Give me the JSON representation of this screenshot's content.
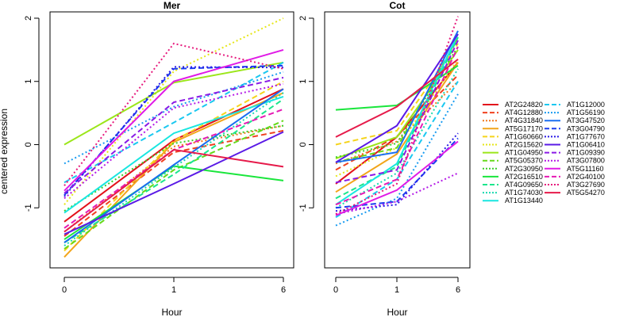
{
  "chart_data": {
    "type": "line",
    "ylabel": "centered expression",
    "xlabel": "Hour",
    "x": [
      "0",
      "1",
      "6"
    ],
    "y_ticks": [
      "-1",
      "0",
      "1",
      "2"
    ],
    "ylim": [
      -1.95,
      2.1
    ],
    "grid": false,
    "legend_position": "right",
    "series_styles": [
      {
        "name": "AT2G24820",
        "color": "#e3111b",
        "dash": "solid"
      },
      {
        "name": "AT4G12880",
        "color": "#f0421f",
        "dash": "dashed"
      },
      {
        "name": "AT4G31840",
        "color": "#f07a1f",
        "dash": "dotted"
      },
      {
        "name": "AT5G17170",
        "color": "#f2a51a",
        "dash": "solid"
      },
      {
        "name": "AT1G60660",
        "color": "#f5d41b",
        "dash": "dashed"
      },
      {
        "name": "AT2G15620",
        "color": "#e6e619",
        "dash": "dotted"
      },
      {
        "name": "AT1G04950",
        "color": "#9be61a",
        "dash": "solid"
      },
      {
        "name": "AT5G05370",
        "color": "#66d91a",
        "dash": "dashed"
      },
      {
        "name": "AT2G30950",
        "color": "#3ccf2a",
        "dash": "dotted"
      },
      {
        "name": "AT2G16510",
        "color": "#1ae63c",
        "dash": "solid"
      },
      {
        "name": "AT4G09650",
        "color": "#1ae68c",
        "dash": "dashed"
      },
      {
        "name": "AT1G74030",
        "color": "#1ad9b0",
        "dash": "dotted"
      },
      {
        "name": "AT1G13440",
        "color": "#19e6e0",
        "dash": "solid"
      },
      {
        "name": "AT1G12000",
        "color": "#1ac8f0",
        "dash": "dashed"
      },
      {
        "name": "AT1G56190",
        "color": "#1a9cf0",
        "dash": "dotted"
      },
      {
        "name": "AT3G47520",
        "color": "#1a6ef0",
        "dash": "solid"
      },
      {
        "name": "AT3G04790",
        "color": "#1a3cf0",
        "dash": "dashed"
      },
      {
        "name": "AT1G77670",
        "color": "#2a1ae6",
        "dash": "dotted"
      },
      {
        "name": "AT1G06410",
        "color": "#5a1ae6",
        "dash": "solid"
      },
      {
        "name": "AT1G09390",
        "color": "#8a1ae6",
        "dash": "dashed"
      },
      {
        "name": "AT3G07800",
        "color": "#b41ae6",
        "dash": "dotted"
      },
      {
        "name": "AT5G11160",
        "color": "#e01ae6",
        "dash": "solid"
      },
      {
        "name": "AT2G40100",
        "color": "#e61ab4",
        "dash": "dashed"
      },
      {
        "name": "AT3G27690",
        "color": "#e61a7d",
        "dash": "dotted"
      },
      {
        "name": "AT5G54270",
        "color": "#e61a4a",
        "dash": "solid"
      }
    ],
    "panels": [
      {
        "title": "Mer",
        "series": [
          {
            "name": "AT2G24820",
            "values": [
              -1.22,
              0.07,
              0.88
            ]
          },
          {
            "name": "AT4G12880",
            "values": [
              -1.45,
              -0.12,
              0.22
            ]
          },
          {
            "name": "AT4G31840",
            "values": [
              -1.38,
              -0.03,
              0.3
            ]
          },
          {
            "name": "AT5G17170",
            "values": [
              -1.78,
              0.04,
              0.82
            ]
          },
          {
            "name": "AT1G60660",
            "values": [
              -1.68,
              0.06,
              1.0
            ]
          },
          {
            "name": "AT2G15620",
            "values": [
              -0.95,
              1.16,
              2.0
            ]
          },
          {
            "name": "AT1G04950",
            "values": [
              0.0,
              0.98,
              1.3
            ]
          },
          {
            "name": "AT5G05370",
            "values": [
              -1.65,
              -0.4,
              0.38
            ]
          },
          {
            "name": "AT2G30950",
            "values": [
              -1.05,
              0.02,
              0.3
            ]
          },
          {
            "name": "AT2G16510",
            "values": [
              -1.5,
              -0.34,
              -0.57
            ]
          },
          {
            "name": "AT4G09650",
            "values": [
              -1.55,
              -0.47,
              0.72
            ]
          },
          {
            "name": "AT1G74030",
            "values": [
              -1.6,
              -0.36,
              0.82
            ]
          },
          {
            "name": "AT1G13440",
            "values": [
              -1.08,
              0.18,
              0.76
            ]
          },
          {
            "name": "AT1G12000",
            "values": [
              -0.6,
              0.35,
              1.3
            ]
          },
          {
            "name": "AT1G56190",
            "values": [
              -0.3,
              0.6,
              1.15
            ]
          },
          {
            "name": "AT3G47520",
            "values": [
              -1.55,
              -0.32,
              0.88
            ]
          },
          {
            "name": "AT3G04790",
            "values": [
              -0.8,
              1.2,
              1.25
            ]
          },
          {
            "name": "AT1G77670",
            "values": [
              -0.82,
              1.23,
              1.22
            ]
          },
          {
            "name": "AT1G06410",
            "values": [
              -1.42,
              -0.62,
              0.2
            ]
          },
          {
            "name": "AT1G09390",
            "values": [
              -0.77,
              0.67,
              1.06
            ]
          },
          {
            "name": "AT3G07800",
            "values": [
              -0.85,
              0.58,
              0.96
            ]
          },
          {
            "name": "AT5G11160",
            "values": [
              -0.73,
              1.0,
              1.5
            ]
          },
          {
            "name": "AT2G40100",
            "values": [
              -1.32,
              -0.08,
              0.56
            ]
          },
          {
            "name": "AT3G27690",
            "values": [
              -0.65,
              1.6,
              1.2
            ]
          },
          {
            "name": "AT5G54270",
            "values": [
              -1.38,
              -0.08,
              -0.35
            ]
          }
        ]
      },
      {
        "title": "Cot",
        "series": [
          {
            "name": "AT2G24820",
            "values": [
              -0.62,
              0.12,
              1.3
            ]
          },
          {
            "name": "AT4G12880",
            "values": [
              -0.4,
              0.13,
              1.1
            ]
          },
          {
            "name": "AT4G31840",
            "values": [
              -0.3,
              0.05,
              1.0
            ]
          },
          {
            "name": "AT5G17170",
            "values": [
              -0.75,
              -0.15,
              1.3
            ]
          },
          {
            "name": "AT1G60660",
            "values": [
              0.0,
              0.22,
              1.6
            ]
          },
          {
            "name": "AT2G15620",
            "values": [
              -0.5,
              -0.05,
              1.35
            ]
          },
          {
            "name": "AT1G04950",
            "values": [
              -0.22,
              0.12,
              1.5
            ]
          },
          {
            "name": "AT5G05370",
            "values": [
              -0.28,
              -0.05,
              1.7
            ]
          },
          {
            "name": "AT2G30950",
            "values": [
              -0.2,
              0.02,
              1.55
            ]
          },
          {
            "name": "AT2G16510",
            "values": [
              0.55,
              0.62,
              1.25
            ]
          },
          {
            "name": "AT4G09650",
            "values": [
              -0.85,
              -0.35,
              1.7
            ]
          },
          {
            "name": "AT1G74030",
            "values": [
              -1.0,
              -0.45,
              1.2
            ]
          },
          {
            "name": "AT1G13440",
            "values": [
              -0.95,
              -0.3,
              1.75
            ]
          },
          {
            "name": "AT1G12000",
            "values": [
              -1.15,
              -0.55,
              1.0
            ]
          },
          {
            "name": "AT1G56190",
            "values": [
              -1.28,
              -0.85,
              0.8
            ]
          },
          {
            "name": "AT3G47520",
            "values": [
              -0.28,
              -0.12,
              1.8
            ]
          },
          {
            "name": "AT3G04790",
            "values": [
              -1.0,
              -0.9,
              0.1
            ]
          },
          {
            "name": "AT1G77670",
            "values": [
              -1.05,
              -0.95,
              0.18
            ]
          },
          {
            "name": "AT1G06410",
            "values": [
              -0.28,
              0.3,
              1.75
            ]
          },
          {
            "name": "AT1G09390",
            "values": [
              -0.6,
              -0.4,
              1.65
            ]
          },
          {
            "name": "AT3G07800",
            "values": [
              -1.1,
              -0.9,
              -0.45
            ]
          },
          {
            "name": "AT5G11160",
            "values": [
              -1.12,
              -0.72,
              0.05
            ]
          },
          {
            "name": "AT2G40100",
            "values": [
              -0.95,
              -0.55,
              1.55
            ]
          },
          {
            "name": "AT3G27690",
            "values": [
              -1.1,
              -0.62,
              2.03
            ]
          },
          {
            "name": "AT5G54270",
            "values": [
              0.12,
              0.6,
              1.35
            ]
          }
        ]
      }
    ]
  }
}
